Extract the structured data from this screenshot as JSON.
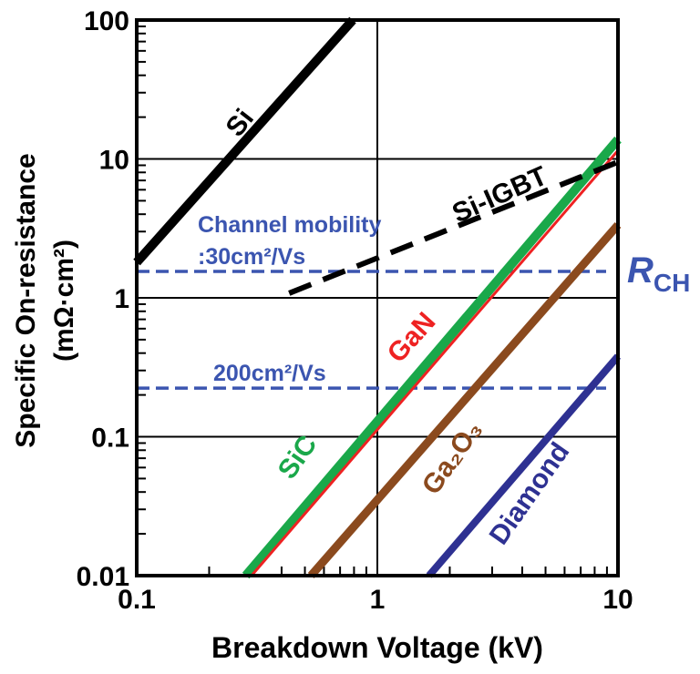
{
  "chart_data": {
    "type": "line",
    "xlabel": "Breakdown Voltage (kV)",
    "ylabel": [
      "Specific On-resistance",
      "(mΩ·cm²)"
    ],
    "xscale": "log",
    "yscale": "log",
    "xlim": [
      0.1,
      10
    ],
    "ylim": [
      0.01,
      100
    ],
    "xticks": [
      "0.1",
      "1",
      "10"
    ],
    "yticks": [
      "0.01",
      "0.1",
      "1",
      "10",
      "100"
    ],
    "grid": true,
    "series": [
      {
        "name": "Si",
        "color": "#000000",
        "style": "solid",
        "x": [
          0.1,
          0.79
        ],
        "y": [
          1.8,
          100
        ]
      },
      {
        "name": "Si-IGBT",
        "color": "#000000",
        "style": "dashed",
        "x": [
          0.43,
          10
        ],
        "y": [
          1.08,
          9.5
        ]
      },
      {
        "name": "SiC",
        "color": "#1aa84a",
        "style": "solid",
        "x": [
          0.284,
          10
        ],
        "y": [
          0.01,
          13.8
        ]
      },
      {
        "name": "GaN",
        "color": "#ee2222",
        "style": "solid",
        "x": [
          0.3,
          10
        ],
        "y": [
          0.01,
          11.5
        ]
      },
      {
        "name": "Ga₂O₃",
        "color": "#8b4a1e",
        "style": "solid",
        "x": [
          0.53,
          10
        ],
        "y": [
          0.01,
          3.35
        ]
      },
      {
        "name": "Diamond",
        "color": "#2e3192",
        "style": "solid",
        "x": [
          1.64,
          10
        ],
        "y": [
          0.01,
          0.38
        ]
      }
    ],
    "reference_lines": [
      {
        "label_line1": "Channel mobility",
        "label_line2": ":30cm²/Vs",
        "y": 1.55,
        "color": "#3b55b0"
      },
      {
        "label_line1": "200cm²/Vs",
        "y": 0.224,
        "color": "#3b55b0"
      }
    ],
    "reference_annotation": {
      "main": "R",
      "sub": "CH"
    }
  }
}
